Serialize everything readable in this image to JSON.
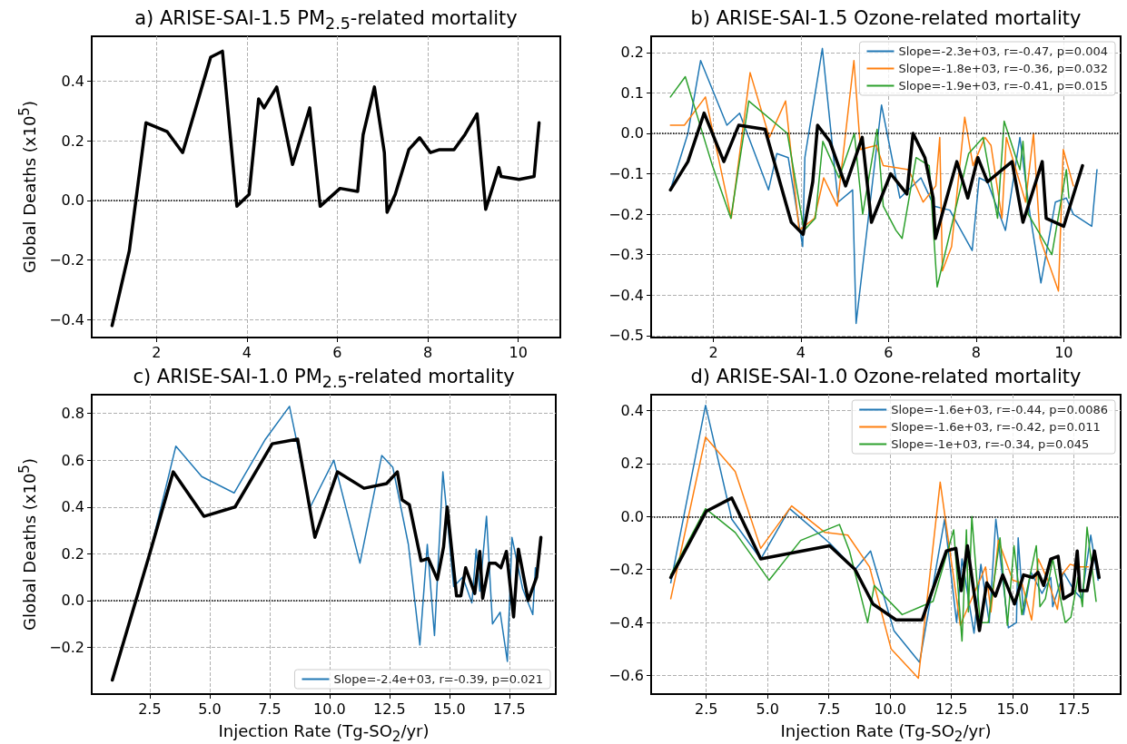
{
  "chart_data": [
    {
      "type": "line",
      "title": "a) ARISE-SAI-1.5 PM$_{2.5}$-related mortality",
      "ylabel": "Global Deaths (x10$^{5}$)",
      "xlim": [
        0.57,
        10.93
      ],
      "ylim": [
        -0.46,
        0.55
      ],
      "xticks": [
        2,
        4,
        6,
        8,
        10
      ],
      "yticks": [
        {
          "value": -0.4,
          "label": "−0.4"
        },
        {
          "value": -0.2,
          "label": "−0.2"
        },
        {
          "value": 0,
          "label": "0.0"
        },
        0.2,
        0.4
      ],
      "grid": true,
      "legend": false,
      "marker": "none",
      "ref_lines": [
        {
          "axis": "y",
          "value": 0,
          "color": "#000000",
          "line_style": "dotted"
        }
      ],
      "series": [
        {
          "color": "#000000",
          "x": [
            1.02,
            1.4,
            1.77,
            2.24,
            2.58,
            3.2,
            3.46,
            3.78,
            4.05,
            4.26,
            4.38,
            4.66,
            5.01,
            5.39,
            5.62,
            6.06,
            6.45,
            6.57,
            6.82,
            7.04,
            7.1,
            7.28,
            7.58,
            7.82,
            8.06,
            8.26,
            8.58,
            8.82,
            9.09,
            9.28,
            9.57,
            9.62,
            10.02,
            10.35,
            10.46
          ],
          "values": [
            -0.42,
            -0.17,
            0.26,
            0.23,
            0.16,
            0.48,
            0.5,
            -0.02,
            0.02,
            0.34,
            0.31,
            0.38,
            0.12,
            0.31,
            -0.02,
            0.04,
            0.03,
            0.22,
            0.38,
            0.16,
            -0.04,
            0.02,
            0.17,
            0.21,
            0.16,
            0.17,
            0.17,
            0.22,
            0.29,
            -0.03,
            0.11,
            0.08,
            0.07,
            0.08,
            0.26
          ]
        }
      ]
    },
    {
      "type": "line",
      "title": "b) ARISE-SAI-1.5 Ozone-related mortality",
      "xlim": [
        0.58,
        11.3
      ],
      "ylim": [
        -0.505,
        0.24
      ],
      "xticks": [
        2,
        4,
        6,
        8,
        10
      ],
      "yticks": [
        {
          "value": -0.5,
          "label": "−0.5"
        },
        {
          "value": -0.4,
          "label": "−0.4"
        },
        {
          "value": -0.3,
          "label": "−0.3"
        },
        {
          "value": -0.2,
          "label": "−0.2"
        },
        {
          "value": -0.1,
          "label": "−0.1"
        },
        {
          "value": 0,
          "label": "0.0"
        },
        0.1,
        0.2
      ],
      "grid": true,
      "legend": "top right",
      "marker": "none",
      "ref_lines": [
        {
          "axis": "y",
          "value": 0,
          "color": "#000000",
          "line_style": "dotted"
        }
      ],
      "series": [
        {
          "name": "Slope=-2.3e+03, r=-0.47, p=0.004",
          "color": "#1f77b4",
          "x": [
            1.02,
            1.42,
            1.71,
            2.31,
            2.6,
            3.26,
            3.45,
            3.71,
            4.04,
            4.09,
            4.49,
            4.85,
            5.18,
            5.26,
            5.84,
            6.26,
            6.74,
            7.04,
            7.4,
            7.91,
            8.07,
            8.26,
            8.67,
            9.0,
            9.23,
            9.48,
            9.81,
            10.06,
            10.22,
            10.64,
            10.76
          ],
          "values": [
            -0.14,
            0.0,
            0.18,
            0.02,
            0.05,
            -0.14,
            -0.05,
            -0.06,
            -0.28,
            -0.06,
            0.21,
            -0.17,
            -0.14,
            -0.47,
            0.07,
            -0.16,
            -0.11,
            -0.18,
            -0.19,
            -0.29,
            -0.11,
            -0.12,
            -0.24,
            -0.01,
            -0.2,
            -0.37,
            -0.17,
            -0.16,
            -0.2,
            -0.23,
            -0.09
          ]
        },
        {
          "name": "Slope=-1.8e+03, r=-0.36, p=0.032",
          "color": "#ff7f0e",
          "x": [
            1.02,
            1.34,
            1.82,
            2.41,
            2.84,
            3.28,
            3.65,
            3.96,
            4.31,
            4.52,
            4.83,
            5.21,
            5.36,
            5.72,
            5.88,
            6.46,
            6.79,
            7.08,
            7.17,
            7.23,
            7.44,
            7.74,
            7.93,
            8.2,
            8.34,
            8.59,
            8.69,
            9.13,
            9.31,
            9.46,
            9.88,
            9.99,
            10.22
          ],
          "values": [
            0.02,
            0.02,
            0.09,
            -0.21,
            0.15,
            -0.01,
            0.08,
            -0.24,
            -0.21,
            -0.11,
            -0.18,
            0.18,
            -0.04,
            -0.03,
            -0.08,
            -0.09,
            -0.17,
            -0.13,
            -0.01,
            -0.34,
            -0.28,
            0.04,
            -0.08,
            -0.01,
            -0.03,
            -0.21,
            -0.01,
            -0.17,
            0.0,
            -0.26,
            -0.39,
            -0.04,
            -0.13
          ]
        },
        {
          "name": "Slope=-1.9e+03, r=-0.41, p=0.015",
          "color": "#2ca02c",
          "x": [
            1.02,
            1.36,
            1.98,
            2.4,
            2.81,
            3.69,
            4.07,
            4.33,
            4.5,
            4.87,
            5.22,
            5.41,
            5.74,
            5.88,
            6.17,
            6.31,
            6.63,
            6.93,
            7.11,
            7.83,
            8.16,
            8.49,
            8.64,
            9.0,
            9.07,
            9.19,
            9.73,
            10.06,
            10.12
          ],
          "values": [
            0.09,
            0.14,
            -0.08,
            -0.21,
            0.08,
            0.0,
            -0.24,
            -0.21,
            -0.02,
            -0.11,
            0.0,
            -0.2,
            0.01,
            -0.18,
            -0.24,
            -0.26,
            -0.06,
            -0.08,
            -0.38,
            -0.05,
            -0.01,
            -0.21,
            0.03,
            -0.09,
            -0.02,
            -0.2,
            -0.3,
            -0.09,
            -0.16
          ]
        },
        {
          "color": "#000000",
          "x": [
            1.02,
            1.42,
            1.79,
            2.24,
            2.58,
            3.18,
            3.78,
            4.05,
            4.27,
            4.38,
            4.66,
            5.02,
            5.4,
            5.61,
            6.05,
            6.42,
            6.56,
            6.83,
            7.02,
            7.07,
            7.56,
            7.81,
            8.04,
            8.26,
            8.82,
            9.07,
            9.51,
            9.6,
            10.0,
            10.43
          ],
          "values": [
            -0.14,
            -0.07,
            0.05,
            -0.07,
            0.02,
            0.01,
            -0.22,
            -0.25,
            -0.12,
            0.02,
            -0.02,
            -0.13,
            -0.01,
            -0.22,
            -0.1,
            -0.15,
            0.0,
            -0.06,
            -0.16,
            -0.26,
            -0.07,
            -0.16,
            -0.06,
            -0.12,
            -0.07,
            -0.22,
            -0.07,
            -0.21,
            -0.23,
            -0.08
          ]
        }
      ]
    },
    {
      "type": "line",
      "title": "c) ARISE-SAI-1.0 PM$_{2.5}$-related mortality",
      "xlabel": "Injection Rate (Tg-SO$_{2}$/yr)",
      "ylabel": "Global Deaths (x10$^{5}$)",
      "xlim": [
        0.08,
        19.44
      ],
      "ylim": [
        -0.4,
        0.88
      ],
      "xticks": [
        2.5,
        {
          "value": 5,
          "label": "5.0"
        },
        7.5,
        {
          "value": 10,
          "label": "10.0"
        },
        12.5,
        {
          "value": 15,
          "label": "15.0"
        },
        17.5
      ],
      "yticks": [
        {
          "value": -0.2,
          "label": "−0.2"
        },
        {
          "value": 0,
          "label": "0.0"
        },
        0.2,
        0.4,
        0.6,
        0.8
      ],
      "grid": true,
      "legend": "bottom right",
      "marker": "none",
      "ref_lines": [
        {
          "axis": "y",
          "value": 0,
          "color": "#000000",
          "line_style": "dotted"
        }
      ],
      "series": [
        {
          "name": "Slope=-2.4e+03, r=-0.39, p=0.021",
          "color": "#1f77b4",
          "x": [
            0.94,
            2.5,
            3.59,
            4.67,
            6.02,
            7.33,
            8.33,
            9.2,
            10.18,
            11.27,
            12.18,
            12.64,
            13.29,
            13.77,
            14.08,
            14.38,
            14.73,
            15.18,
            15.56,
            15.94,
            16.12,
            16.27,
            16.55,
            16.8,
            17.12,
            17.42,
            17.61,
            18.06,
            18.48,
            18.59
          ],
          "values": [
            -0.34,
            0.2,
            0.66,
            0.53,
            0.46,
            0.69,
            0.83,
            0.4,
            0.6,
            0.16,
            0.62,
            0.57,
            0.24,
            -0.19,
            0.24,
            -0.15,
            0.55,
            0.06,
            0.1,
            -0.01,
            0.22,
            0.04,
            0.36,
            -0.1,
            -0.05,
            -0.26,
            0.27,
            0.05,
            -0.06,
            0.14
          ]
        },
        {
          "color": "#000000",
          "x": [
            0.94,
            2.5,
            3.48,
            4.76,
            6.06,
            7.61,
            8.67,
            9.39,
            10.33,
            11.44,
            12.38,
            12.83,
            13.03,
            13.33,
            13.82,
            14.12,
            14.5,
            14.76,
            14.91,
            15.3,
            15.48,
            15.68,
            16.06,
            16.27,
            16.39,
            16.67,
            16.92,
            17.15,
            17.38,
            17.68,
            17.88,
            18.29,
            18.64,
            18.82
          ],
          "values": [
            -0.34,
            0.2,
            0.55,
            0.36,
            0.4,
            0.67,
            0.69,
            0.27,
            0.55,
            0.48,
            0.5,
            0.55,
            0.43,
            0.41,
            0.17,
            0.18,
            0.09,
            0.23,
            0.4,
            0.02,
            0.02,
            0.14,
            0.03,
            0.21,
            0.01,
            0.16,
            0.16,
            0.14,
            0.21,
            -0.07,
            0.22,
            0.0,
            0.1,
            0.27
          ]
        }
      ]
    },
    {
      "type": "line",
      "title": "d) ARISE-SAI-1.0 Ozone-related mortality",
      "xlabel": "Injection Rate (Tg-SO$_{2}$/yr)",
      "xlim": [
        0.25,
        19.4
      ],
      "ylim": [
        -0.67,
        0.46
      ],
      "xticks": [
        2.5,
        {
          "value": 5,
          "label": "5.0"
        },
        7.5,
        {
          "value": 10,
          "label": "10.0"
        },
        12.5,
        {
          "value": 15,
          "label": "15.0"
        },
        17.5
      ],
      "yticks": [
        {
          "value": -0.6,
          "label": "−0.6"
        },
        {
          "value": -0.4,
          "label": "−0.4"
        },
        {
          "value": -0.2,
          "label": "−0.2"
        },
        {
          "value": 0,
          "label": "0.0"
        },
        0.2,
        0.4
      ],
      "grid": true,
      "legend": "top right",
      "marker": "none",
      "ref_lines": [
        {
          "axis": "y",
          "value": 0,
          "color": "#000000",
          "line_style": "dotted"
        }
      ],
      "series": [
        {
          "name": "Slope=-1.6e+03, r=-0.44, p=0.0086",
          "color": "#1f77b4",
          "x": [
            1.05,
            2.47,
            3.54,
            4.72,
            5.9,
            7.53,
            8.57,
            9.2,
            10.15,
            11.2,
            12.22,
            12.71,
            12.93,
            13.42,
            13.7,
            14.04,
            14.31,
            14.82,
            15.15,
            15.22,
            15.44,
            15.74,
            16.19,
            16.55,
            16.63,
            17.07,
            17.51,
            17.81,
            18.18,
            18.48
          ],
          "values": [
            -0.25,
            0.42,
            -0.01,
            -0.16,
            0.03,
            -0.1,
            -0.2,
            -0.13,
            -0.43,
            -0.55,
            -0.01,
            -0.4,
            -0.16,
            -0.44,
            -0.18,
            -0.4,
            -0.01,
            -0.42,
            -0.4,
            -0.08,
            -0.37,
            -0.21,
            -0.29,
            -0.23,
            -0.34,
            -0.21,
            -0.28,
            -0.31,
            -0.07,
            -0.24
          ]
        },
        {
          "name": "Slope=-1.6e+03, r=-0.42, p=0.011",
          "color": "#ff7f0e",
          "x": [
            1.05,
            2.47,
            3.68,
            4.72,
            5.98,
            7.34,
            8.27,
            9.16,
            10.04,
            11.15,
            12.04,
            12.86,
            13.89,
            14.11,
            14.41,
            15.0,
            15.37,
            15.77,
            16.04,
            16.43,
            16.82,
            17.0,
            17.34,
            17.66,
            18.08
          ],
          "values": [
            -0.31,
            0.3,
            0.17,
            -0.12,
            0.04,
            -0.06,
            -0.07,
            -0.19,
            -0.5,
            -0.61,
            0.13,
            -0.41,
            -0.19,
            -0.36,
            -0.09,
            -0.24,
            -0.25,
            -0.39,
            -0.16,
            -0.24,
            -0.35,
            -0.22,
            -0.18,
            -0.19,
            -0.19
          ]
        },
        {
          "name": "Slope=-1e+03, r=-0.34, p=0.045",
          "color": "#2ca02c",
          "x": [
            1.05,
            2.47,
            3.68,
            5.06,
            6.35,
            7.93,
            8.34,
            9.08,
            9.35,
            10.49,
            11.75,
            12.59,
            12.93,
            13.11,
            13.19,
            13.33,
            13.67,
            14.0,
            14.48,
            14.78,
            15.05,
            15.37,
            15.96,
            16.11,
            16.33,
            16.63,
            17.14,
            17.37,
            17.66,
            17.84,
            18.03,
            18.4
          ],
          "values": [
            -0.22,
            0.03,
            -0.06,
            -0.24,
            -0.09,
            -0.03,
            -0.13,
            -0.4,
            -0.26,
            -0.37,
            -0.32,
            -0.05,
            -0.47,
            -0.05,
            -0.36,
            0.0,
            -0.4,
            -0.4,
            -0.08,
            -0.41,
            -0.11,
            -0.37,
            -0.11,
            -0.34,
            -0.31,
            -0.16,
            -0.4,
            -0.38,
            -0.23,
            -0.34,
            -0.04,
            -0.32
          ]
        },
        {
          "color": "#000000",
          "x": [
            1.05,
            2.5,
            3.54,
            4.72,
            7.53,
            8.57,
            9.3,
            10.24,
            11.3,
            12.29,
            12.68,
            12.9,
            13.15,
            13.64,
            13.94,
            14.29,
            14.59,
            15.07,
            15.44,
            15.81,
            16.03,
            16.26,
            16.55,
            16.85,
            17.07,
            17.44,
            17.63,
            17.74,
            18.03,
            18.33,
            18.52
          ],
          "values": [
            -0.23,
            0.02,
            0.07,
            -0.16,
            -0.11,
            -0.2,
            -0.33,
            -0.39,
            -0.39,
            -0.13,
            -0.12,
            -0.28,
            -0.11,
            -0.43,
            -0.25,
            -0.3,
            -0.22,
            -0.33,
            -0.22,
            -0.23,
            -0.21,
            -0.26,
            -0.16,
            -0.15,
            -0.31,
            -0.29,
            -0.13,
            -0.28,
            -0.28,
            -0.13,
            -0.23
          ]
        }
      ]
    }
  ]
}
